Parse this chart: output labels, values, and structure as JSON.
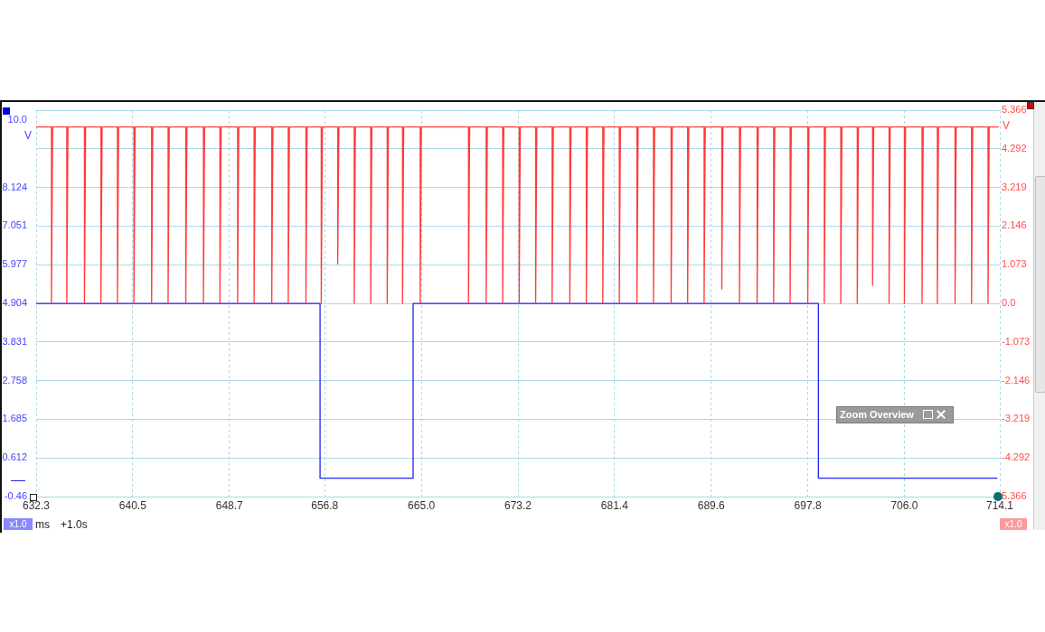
{
  "chart_data": {
    "type": "line",
    "xlabel": "ms",
    "ylabel": "V",
    "y2label": "V",
    "annotations": [
      "+1.0s",
      "x1.0",
      "x1.0",
      "Zoom Overview"
    ],
    "xlim": [
      632.3,
      714.1
    ],
    "xticks": [
      632.3,
      640.5,
      648.7,
      656.8,
      {
        "value": 665,
        "label": "665.0"
      },
      673.2,
      681.4,
      689.6,
      697.8,
      {
        "value": 706,
        "label": "706.0"
      },
      714.1
    ],
    "ylim": [
      -0.46,
      10.27
    ],
    "yticks": [
      {
        "value": 10,
        "label": "10.0"
      },
      8.124,
      7.051,
      5.977,
      4.904,
      3.831,
      2.758,
      1.685,
      0.612,
      -0.46
    ],
    "y2lim": [
      -5.366,
      5.366
    ],
    "y2ticks": [
      5.366,
      4.292,
      3.219,
      2.146,
      1.073,
      {
        "value": 0,
        "label": "0.0"
      },
      -1.073,
      -2.146,
      -3.219,
      -4.292,
      {
        "value": -5.366,
        "label": "5.366"
      }
    ],
    "grid": true,
    "marker": "none",
    "line_style": "solid",
    "series": [
      {
        "color": "#ff3b3b",
        "axis": "y2",
        "x": [
          632.3,
          633.6,
          633.6,
          633.7,
          634.9,
          634.9,
          635.0,
          636.4,
          636.4,
          636.5,
          637.8,
          637.8,
          637.9,
          639.2,
          639.2,
          639.3,
          640.6,
          640.6,
          640.7,
          642.1,
          642.1,
          642.2,
          643.5,
          643.5,
          643.6,
          645.0,
          645.0,
          645.1,
          646.5,
          646.5,
          646.6,
          647.9,
          647.9,
          648.0,
          649.4,
          649.4,
          649.5,
          650.8,
          650.8,
          650.9,
          652.3,
          652.3,
          652.4,
          653.7,
          653.7,
          653.8,
          655.2,
          655.2,
          655.3,
          656.5,
          656.5,
          656.6,
          657.9,
          657.9,
          658.0,
          659.3,
          659.3,
          659.4,
          660.7,
          660.7,
          660.8,
          662.1,
          662.1,
          662.2,
          663.4,
          663.4,
          663.5,
          664.9,
          664.9,
          665.0,
          669.0,
          669.0,
          669.1,
          670.5,
          670.5,
          670.6,
          671.9,
          671.9,
          672.0,
          673.3,
          673.3,
          673.4,
          674.7,
          674.7,
          674.8,
          676.1,
          676.1,
          676.2,
          677.6,
          677.6,
          677.7,
          679.0,
          679.0,
          679.1,
          680.4,
          680.4,
          680.5,
          681.8,
          681.8,
          681.9,
          683.3,
          683.3,
          683.4,
          684.7,
          684.7,
          684.8,
          686.2,
          686.2,
          686.3,
          687.6,
          687.6,
          687.7,
          689.0,
          689.0,
          689.1,
          690.5,
          690.5,
          690.6,
          692.0,
          692.0,
          692.1,
          693.5,
          693.5,
          693.6,
          694.9,
          694.9,
          695.0,
          696.3,
          696.3,
          696.4,
          697.8,
          697.8,
          697.9,
          699.2,
          699.2,
          699.3,
          700.6,
          700.6,
          700.7,
          702.0,
          702.0,
          702.1,
          703.3,
          703.3,
          703.4,
          704.7,
          704.7,
          704.8,
          706.0,
          706.0,
          706.1,
          707.5,
          707.5,
          707.6,
          708.8,
          708.8,
          708.9,
          710.3,
          710.3,
          710.4,
          711.7,
          711.7,
          711.8,
          713.1,
          713.1,
          713.2,
          714.0
        ],
        "values": [
          4.9,
          4.9,
          0,
          4.9,
          4.9,
          0,
          4.9,
          4.9,
          0,
          4.9,
          4.9,
          0,
          4.9,
          4.9,
          0,
          4.9,
          4.9,
          0,
          4.9,
          4.9,
          0,
          4.9,
          4.9,
          0,
          4.9,
          4.9,
          0,
          4.9,
          4.9,
          0,
          4.9,
          4.9,
          0,
          4.9,
          4.9,
          0,
          4.9,
          4.9,
          0,
          4.9,
          4.9,
          0,
          4.9,
          4.9,
          0,
          4.9,
          4.9,
          0,
          4.9,
          4.9,
          0,
          4.9,
          4.9,
          1.1,
          4.9,
          4.9,
          0,
          4.9,
          4.9,
          0,
          4.9,
          4.9,
          0,
          4.9,
          4.9,
          0,
          4.9,
          4.9,
          0,
          4.9,
          4.9,
          0,
          4.9,
          4.9,
          0,
          4.9,
          4.9,
          0,
          4.9,
          4.9,
          0,
          4.9,
          4.9,
          0,
          4.9,
          4.9,
          0,
          4.9,
          4.9,
          0,
          4.9,
          4.9,
          0,
          4.9,
          4.9,
          0,
          4.9,
          4.9,
          0,
          4.9,
          4.9,
          0,
          4.9,
          4.9,
          0,
          4.9,
          4.9,
          0,
          4.9,
          4.9,
          0,
          4.9,
          4.9,
          0,
          4.9,
          4.9,
          0.4,
          4.9,
          4.9,
          0,
          4.9,
          4.9,
          0,
          4.9,
          4.9,
          0,
          4.9,
          4.9,
          0,
          4.9,
          4.9,
          0,
          4.9,
          4.9,
          0,
          4.9,
          4.9,
          0,
          4.9,
          4.9,
          0,
          4.9,
          4.9,
          0.5,
          4.9,
          4.9,
          0,
          4.9,
          4.9,
          0,
          4.9,
          4.9,
          0,
          4.9,
          4.9,
          0,
          4.9,
          4.9,
          0,
          4.9,
          4.9,
          0,
          4.9,
          4.9,
          0,
          4.9,
          4.9
        ]
      },
      {
        "color": "#2222ee",
        "axis": "y",
        "x": [
          632.3,
          656.4,
          656.4,
          664.3,
          664.3,
          698.7,
          698.7,
          713.9
        ],
        "values": [
          4.9,
          4.9,
          0.05,
          0.05,
          4.9,
          4.9,
          0.05,
          0.05
        ]
      }
    ]
  }
}
